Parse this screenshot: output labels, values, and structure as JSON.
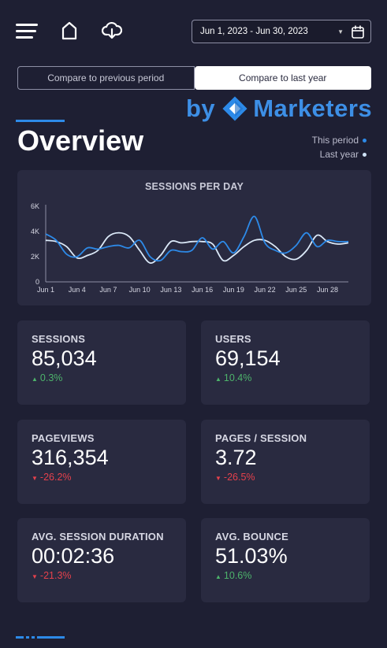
{
  "topbar": {
    "date_range": "Jun 1, 2023 - Jun 30, 2023"
  },
  "compare": {
    "previous_label": "Compare to previous period",
    "last_year_label": "Compare to last year"
  },
  "brand": {
    "by": "by",
    "name": "Marketers"
  },
  "overview": {
    "title": "Overview",
    "legend_this": "This period",
    "legend_last": "Last year"
  },
  "chart_data": {
    "type": "line",
    "title": "SESSIONS PER DAY",
    "xlabel": "",
    "ylabel": "",
    "ylim": [
      0,
      6000
    ],
    "yticks": [
      "0",
      "2K",
      "4K",
      "6K"
    ],
    "x_tick_labels": [
      "Jun 1",
      "Jun 4",
      "Jun 7",
      "Jun 10",
      "Jun 13",
      "Jun 16",
      "Jun 19",
      "Jun 22",
      "Jun 25",
      "Jun 28"
    ],
    "x": [
      1,
      2,
      3,
      4,
      5,
      6,
      7,
      8,
      9,
      10,
      11,
      12,
      13,
      14,
      15,
      16,
      17,
      18,
      19,
      20,
      21,
      22,
      23,
      24,
      25,
      26,
      27,
      28,
      29,
      30
    ],
    "series": [
      {
        "name": "This period",
        "color": "#2d8ae8",
        "values": [
          3800,
          3300,
          2200,
          2000,
          2700,
          2600,
          2800,
          2900,
          2700,
          3300,
          2000,
          1700,
          2500,
          2400,
          2500,
          3500,
          2600,
          3200,
          2300,
          3600,
          5200,
          3100,
          2500,
          2300,
          2900,
          3900,
          2800,
          3300,
          3200,
          3200
        ]
      },
      {
        "name": "Last year",
        "color": "#dbe9f8",
        "values": [
          3300,
          3200,
          2800,
          1900,
          2100,
          2500,
          3600,
          3900,
          3600,
          2500,
          1500,
          2100,
          3200,
          3100,
          3200,
          3200,
          3000,
          1700,
          2100,
          2800,
          3300,
          3300,
          2800,
          2000,
          1800,
          2500,
          3700,
          3200,
          3000,
          3100
        ]
      }
    ]
  },
  "kpis": [
    {
      "label": "SESSIONS",
      "value": "85,034",
      "delta": "0.3%",
      "direction": "up"
    },
    {
      "label": "USERS",
      "value": "69,154",
      "delta": "10.4%",
      "direction": "up"
    },
    {
      "label": "PAGEVIEWS",
      "value": "316,354",
      "delta": "-26.2%",
      "direction": "down"
    },
    {
      "label": "PAGES / SESSION",
      "value": "3.72",
      "delta": "-26.5%",
      "direction": "down"
    },
    {
      "label": "AVG. SESSION DURATION",
      "value": "00:02:36",
      "delta": "-21.3%",
      "direction": "down"
    },
    {
      "label": "AVG. BOUNCE",
      "value": "51.03%",
      "delta": "10.6%",
      "direction": "up"
    }
  ],
  "colors": {
    "background": "#1e1f33",
    "card": "#292a40",
    "accent": "#2d8ae8",
    "positive": "#4db36b",
    "negative": "#e5414c"
  }
}
